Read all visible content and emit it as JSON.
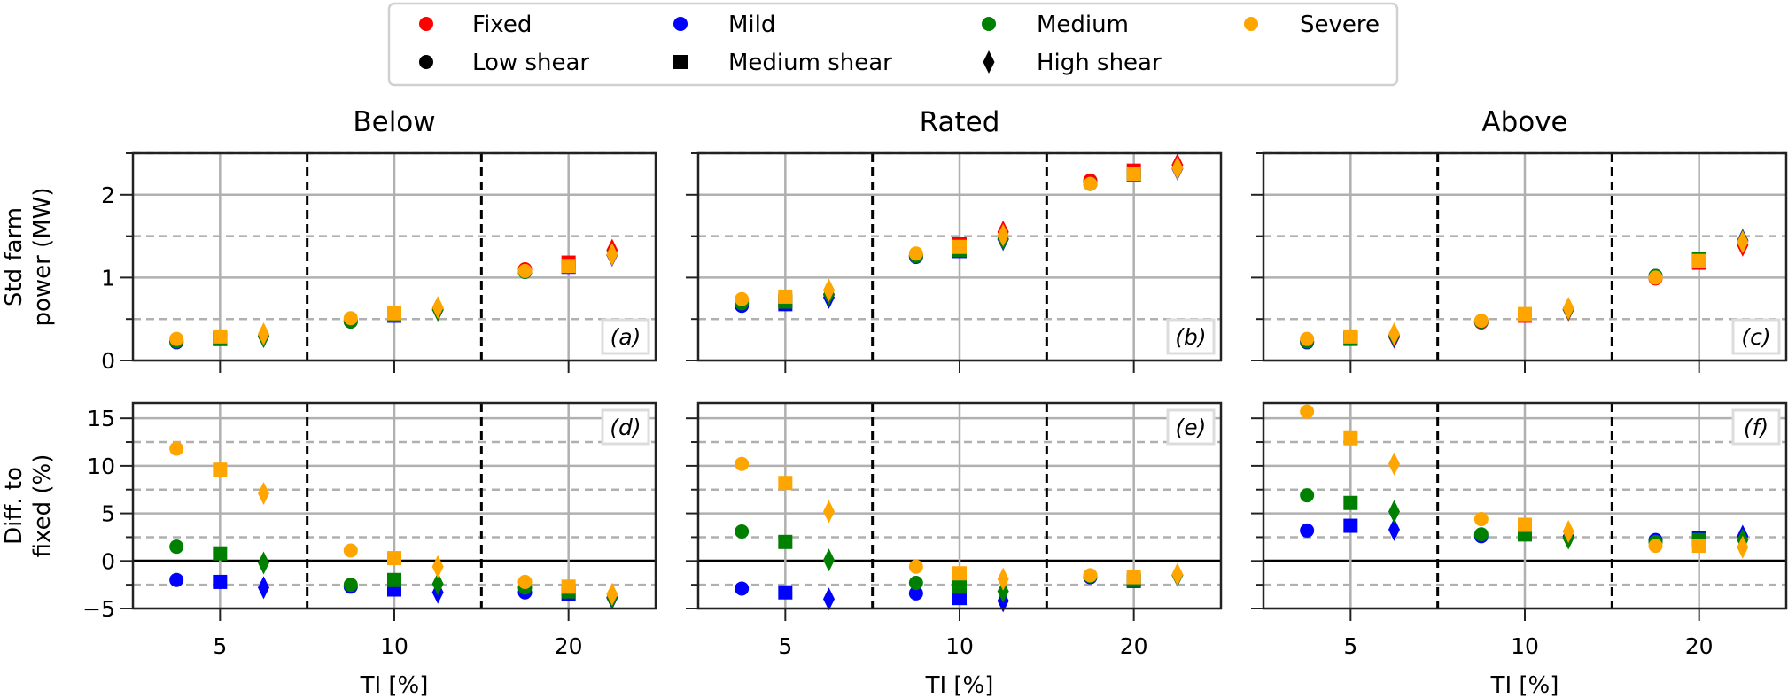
{
  "legend": {
    "conditions": [
      {
        "label": "Fixed",
        "color": "#ff0000"
      },
      {
        "label": "Mild",
        "color": "#0000ff"
      },
      {
        "label": "Medium",
        "color": "#008000"
      },
      {
        "label": "Severe",
        "color": "#ffa500"
      }
    ],
    "shears": [
      {
        "label": "Low shear",
        "marker": "circle"
      },
      {
        "label": "Medium shear",
        "marker": "square"
      },
      {
        "label": "High shear",
        "marker": "diamond"
      }
    ]
  },
  "chart_data": [
    {
      "id": "a",
      "type": "scatter",
      "title": "Below",
      "ylabel": [
        "Std farm",
        "power (MW)"
      ],
      "xlabel": "",
      "categories": [
        "5",
        "10",
        "20"
      ],
      "ylim": [
        0,
        2.5
      ],
      "yticks": [
        0,
        1,
        2
      ],
      "ytick_labels": [
        "0",
        "1",
        "2"
      ],
      "annotation": "(a)",
      "grid": true,
      "series": [
        {
          "condition": "Fixed",
          "shear": "Low shear",
          "values": [
            0.24,
            0.49,
            1.1
          ]
        },
        {
          "condition": "Fixed",
          "shear": "Medium shear",
          "values": [
            0.27,
            0.55,
            1.18
          ]
        },
        {
          "condition": "Fixed",
          "shear": "High shear",
          "values": [
            0.3,
            0.62,
            1.33
          ]
        },
        {
          "condition": "Mild",
          "shear": "Low shear",
          "values": [
            0.22,
            0.47,
            1.07
          ]
        },
        {
          "condition": "Mild",
          "shear": "Medium shear",
          "values": [
            0.26,
            0.54,
            1.13
          ]
        },
        {
          "condition": "Mild",
          "shear": "High shear",
          "values": [
            0.29,
            0.61,
            1.27
          ]
        },
        {
          "condition": "Medium",
          "shear": "Low shear",
          "values": [
            0.23,
            0.47,
            1.07
          ]
        },
        {
          "condition": "Medium",
          "shear": "Medium shear",
          "values": [
            0.26,
            0.55,
            1.14
          ]
        },
        {
          "condition": "Medium",
          "shear": "High shear",
          "values": [
            0.29,
            0.61,
            1.28
          ]
        },
        {
          "condition": "Severe",
          "shear": "Low shear",
          "values": [
            0.26,
            0.51,
            1.08
          ]
        },
        {
          "condition": "Severe",
          "shear": "Medium shear",
          "values": [
            0.29,
            0.57,
            1.14
          ]
        },
        {
          "condition": "Severe",
          "shear": "High shear",
          "values": [
            0.32,
            0.64,
            1.28
          ]
        }
      ]
    },
    {
      "id": "b",
      "type": "scatter",
      "title": "Rated",
      "xlabel": "",
      "categories": [
        "5",
        "10",
        "20"
      ],
      "ylim": [
        0,
        2.5
      ],
      "yticks": [
        0,
        1,
        2
      ],
      "annotation": "(b)",
      "grid": true,
      "series": [
        {
          "condition": "Fixed",
          "shear": "Low shear",
          "values": [
            0.7,
            1.27,
            2.17
          ]
        },
        {
          "condition": "Fixed",
          "shear": "Medium shear",
          "values": [
            0.72,
            1.41,
            2.29
          ]
        },
        {
          "condition": "Fixed",
          "shear": "High shear",
          "values": [
            0.79,
            1.55,
            2.36
          ]
        },
        {
          "condition": "Mild",
          "shear": "Low shear",
          "values": [
            0.66,
            1.25,
            2.13
          ]
        },
        {
          "condition": "Mild",
          "shear": "Medium shear",
          "values": [
            0.68,
            1.32,
            2.24
          ]
        },
        {
          "condition": "Mild",
          "shear": "High shear",
          "values": [
            0.76,
            1.46,
            2.31
          ]
        },
        {
          "condition": "Medium",
          "shear": "Low shear",
          "values": [
            0.69,
            1.26,
            2.13
          ]
        },
        {
          "condition": "Medium",
          "shear": "Medium shear",
          "values": [
            0.71,
            1.33,
            2.25
          ]
        },
        {
          "condition": "Medium",
          "shear": "High shear",
          "values": [
            0.8,
            1.47,
            2.32
          ]
        },
        {
          "condition": "Severe",
          "shear": "Low shear",
          "values": [
            0.74,
            1.29,
            2.13
          ]
        },
        {
          "condition": "Severe",
          "shear": "Medium shear",
          "values": [
            0.77,
            1.37,
            2.25
          ]
        },
        {
          "condition": "Severe",
          "shear": "High shear",
          "values": [
            0.85,
            1.51,
            2.32
          ]
        }
      ]
    },
    {
      "id": "c",
      "type": "scatter",
      "title": "Above",
      "xlabel": "",
      "categories": [
        "5",
        "10",
        "20"
      ],
      "ylim": [
        0,
        2.5
      ],
      "yticks": [
        0,
        1,
        2
      ],
      "annotation": "(c)",
      "grid": true,
      "series": [
        {
          "condition": "Fixed",
          "shear": "Low shear",
          "values": [
            0.23,
            0.46,
            0.99
          ]
        },
        {
          "condition": "Fixed",
          "shear": "Medium shear",
          "values": [
            0.26,
            0.54,
            1.18
          ]
        },
        {
          "condition": "Fixed",
          "shear": "High shear",
          "values": [
            0.28,
            0.61,
            1.39
          ]
        },
        {
          "condition": "Mild",
          "shear": "Low shear",
          "values": [
            0.22,
            0.47,
            1.02
          ]
        },
        {
          "condition": "Mild",
          "shear": "Medium shear",
          "values": [
            0.27,
            0.55,
            1.21
          ]
        },
        {
          "condition": "Mild",
          "shear": "High shear",
          "values": [
            0.29,
            0.62,
            1.45
          ]
        },
        {
          "condition": "Medium",
          "shear": "Low shear",
          "values": [
            0.23,
            0.47,
            1.02
          ]
        },
        {
          "condition": "Medium",
          "shear": "Medium shear",
          "values": [
            0.27,
            0.55,
            1.22
          ]
        },
        {
          "condition": "Medium",
          "shear": "High shear",
          "values": [
            0.3,
            0.62,
            1.44
          ]
        },
        {
          "condition": "Severe",
          "shear": "Low shear",
          "values": [
            0.26,
            0.48,
            1.0
          ]
        },
        {
          "condition": "Severe",
          "shear": "Medium shear",
          "values": [
            0.29,
            0.56,
            1.2
          ]
        },
        {
          "condition": "Severe",
          "shear": "High shear",
          "values": [
            0.32,
            0.63,
            1.43
          ]
        }
      ]
    },
    {
      "id": "d",
      "type": "scatter",
      "ylabel": [
        "Diff. to",
        "fixed (%)"
      ],
      "xlabel": "TI [%]",
      "categories": [
        "5",
        "10",
        "20"
      ],
      "ylim": [
        -5,
        16.6
      ],
      "yticks": [
        -5,
        0,
        5,
        10,
        15
      ],
      "ytick_labels": [
        "−5",
        "0",
        "5",
        "10",
        "15"
      ],
      "zero_line": true,
      "annotation": "(d)",
      "grid": true,
      "series": [
        {
          "condition": "Mild",
          "shear": "Low shear",
          "values": [
            -2.0,
            -2.7,
            -3.3
          ]
        },
        {
          "condition": "Mild",
          "shear": "Medium shear",
          "values": [
            -2.2,
            -3.0,
            -3.5
          ]
        },
        {
          "condition": "Mild",
          "shear": "High shear",
          "values": [
            -2.8,
            -3.3,
            -3.9
          ]
        },
        {
          "condition": "Medium",
          "shear": "Low shear",
          "values": [
            1.5,
            -2.5,
            -2.8
          ]
        },
        {
          "condition": "Medium",
          "shear": "Medium shear",
          "values": [
            0.8,
            -2.0,
            -3.2
          ]
        },
        {
          "condition": "Medium",
          "shear": "High shear",
          "values": [
            -0.2,
            -2.4,
            -3.8
          ]
        },
        {
          "condition": "Severe",
          "shear": "Low shear",
          "values": [
            11.8,
            1.1,
            -2.2
          ]
        },
        {
          "condition": "Severe",
          "shear": "Medium shear",
          "values": [
            9.6,
            0.3,
            -2.7
          ]
        },
        {
          "condition": "Severe",
          "shear": "High shear",
          "values": [
            7.1,
            -0.6,
            -3.5
          ]
        }
      ]
    },
    {
      "id": "e",
      "type": "scatter",
      "xlabel": "TI [%]",
      "categories": [
        "5",
        "10",
        "20"
      ],
      "ylim": [
        -5,
        16.6
      ],
      "yticks": [
        -5,
        0,
        5,
        10,
        15
      ],
      "zero_line": true,
      "annotation": "(e)",
      "grid": true,
      "series": [
        {
          "condition": "Mild",
          "shear": "Low shear",
          "values": [
            -2.9,
            -3.4,
            -1.7
          ]
        },
        {
          "condition": "Mild",
          "shear": "Medium shear",
          "values": [
            -3.3,
            -3.9,
            -2.1
          ]
        },
        {
          "condition": "Mild",
          "shear": "High shear",
          "values": [
            -4.0,
            -4.2,
            -1.5
          ]
        },
        {
          "condition": "Medium",
          "shear": "Low shear",
          "values": [
            3.1,
            -2.3,
            -1.6
          ]
        },
        {
          "condition": "Medium",
          "shear": "Medium shear",
          "values": [
            2.0,
            -2.7,
            -2.0
          ]
        },
        {
          "condition": "Medium",
          "shear": "High shear",
          "values": [
            0.1,
            -3.2,
            -1.5
          ]
        },
        {
          "condition": "Severe",
          "shear": "Low shear",
          "values": [
            10.2,
            -0.6,
            -1.5
          ]
        },
        {
          "condition": "Severe",
          "shear": "Medium shear",
          "values": [
            8.2,
            -1.3,
            -1.7
          ]
        },
        {
          "condition": "Severe",
          "shear": "High shear",
          "values": [
            5.2,
            -1.9,
            -1.4
          ]
        }
      ]
    },
    {
      "id": "f",
      "type": "scatter",
      "xlabel": "TI [%]",
      "categories": [
        "5",
        "10",
        "20"
      ],
      "ylim": [
        -5,
        16.6
      ],
      "yticks": [
        -5,
        0,
        5,
        10,
        15
      ],
      "zero_line": true,
      "annotation": "(f)",
      "grid": true,
      "series": [
        {
          "condition": "Mild",
          "shear": "Low shear",
          "values": [
            3.2,
            2.6,
            2.2
          ]
        },
        {
          "condition": "Mild",
          "shear": "Medium shear",
          "values": [
            3.7,
            2.8,
            2.4
          ]
        },
        {
          "condition": "Mild",
          "shear": "High shear",
          "values": [
            3.3,
            2.6,
            2.6
          ]
        },
        {
          "condition": "Medium",
          "shear": "Low shear",
          "values": [
            6.9,
            2.8,
            2.0
          ]
        },
        {
          "condition": "Medium",
          "shear": "Medium shear",
          "values": [
            6.1,
            2.8,
            2.2
          ]
        },
        {
          "condition": "Medium",
          "shear": "High shear",
          "values": [
            5.2,
            2.4,
            2.2
          ]
        },
        {
          "condition": "Severe",
          "shear": "Low shear",
          "values": [
            15.7,
            4.4,
            1.6
          ]
        },
        {
          "condition": "Severe",
          "shear": "Medium shear",
          "values": [
            12.9,
            3.8,
            1.6
          ]
        },
        {
          "condition": "Severe",
          "shear": "High shear",
          "values": [
            10.2,
            3.1,
            1.45
          ]
        }
      ]
    }
  ]
}
